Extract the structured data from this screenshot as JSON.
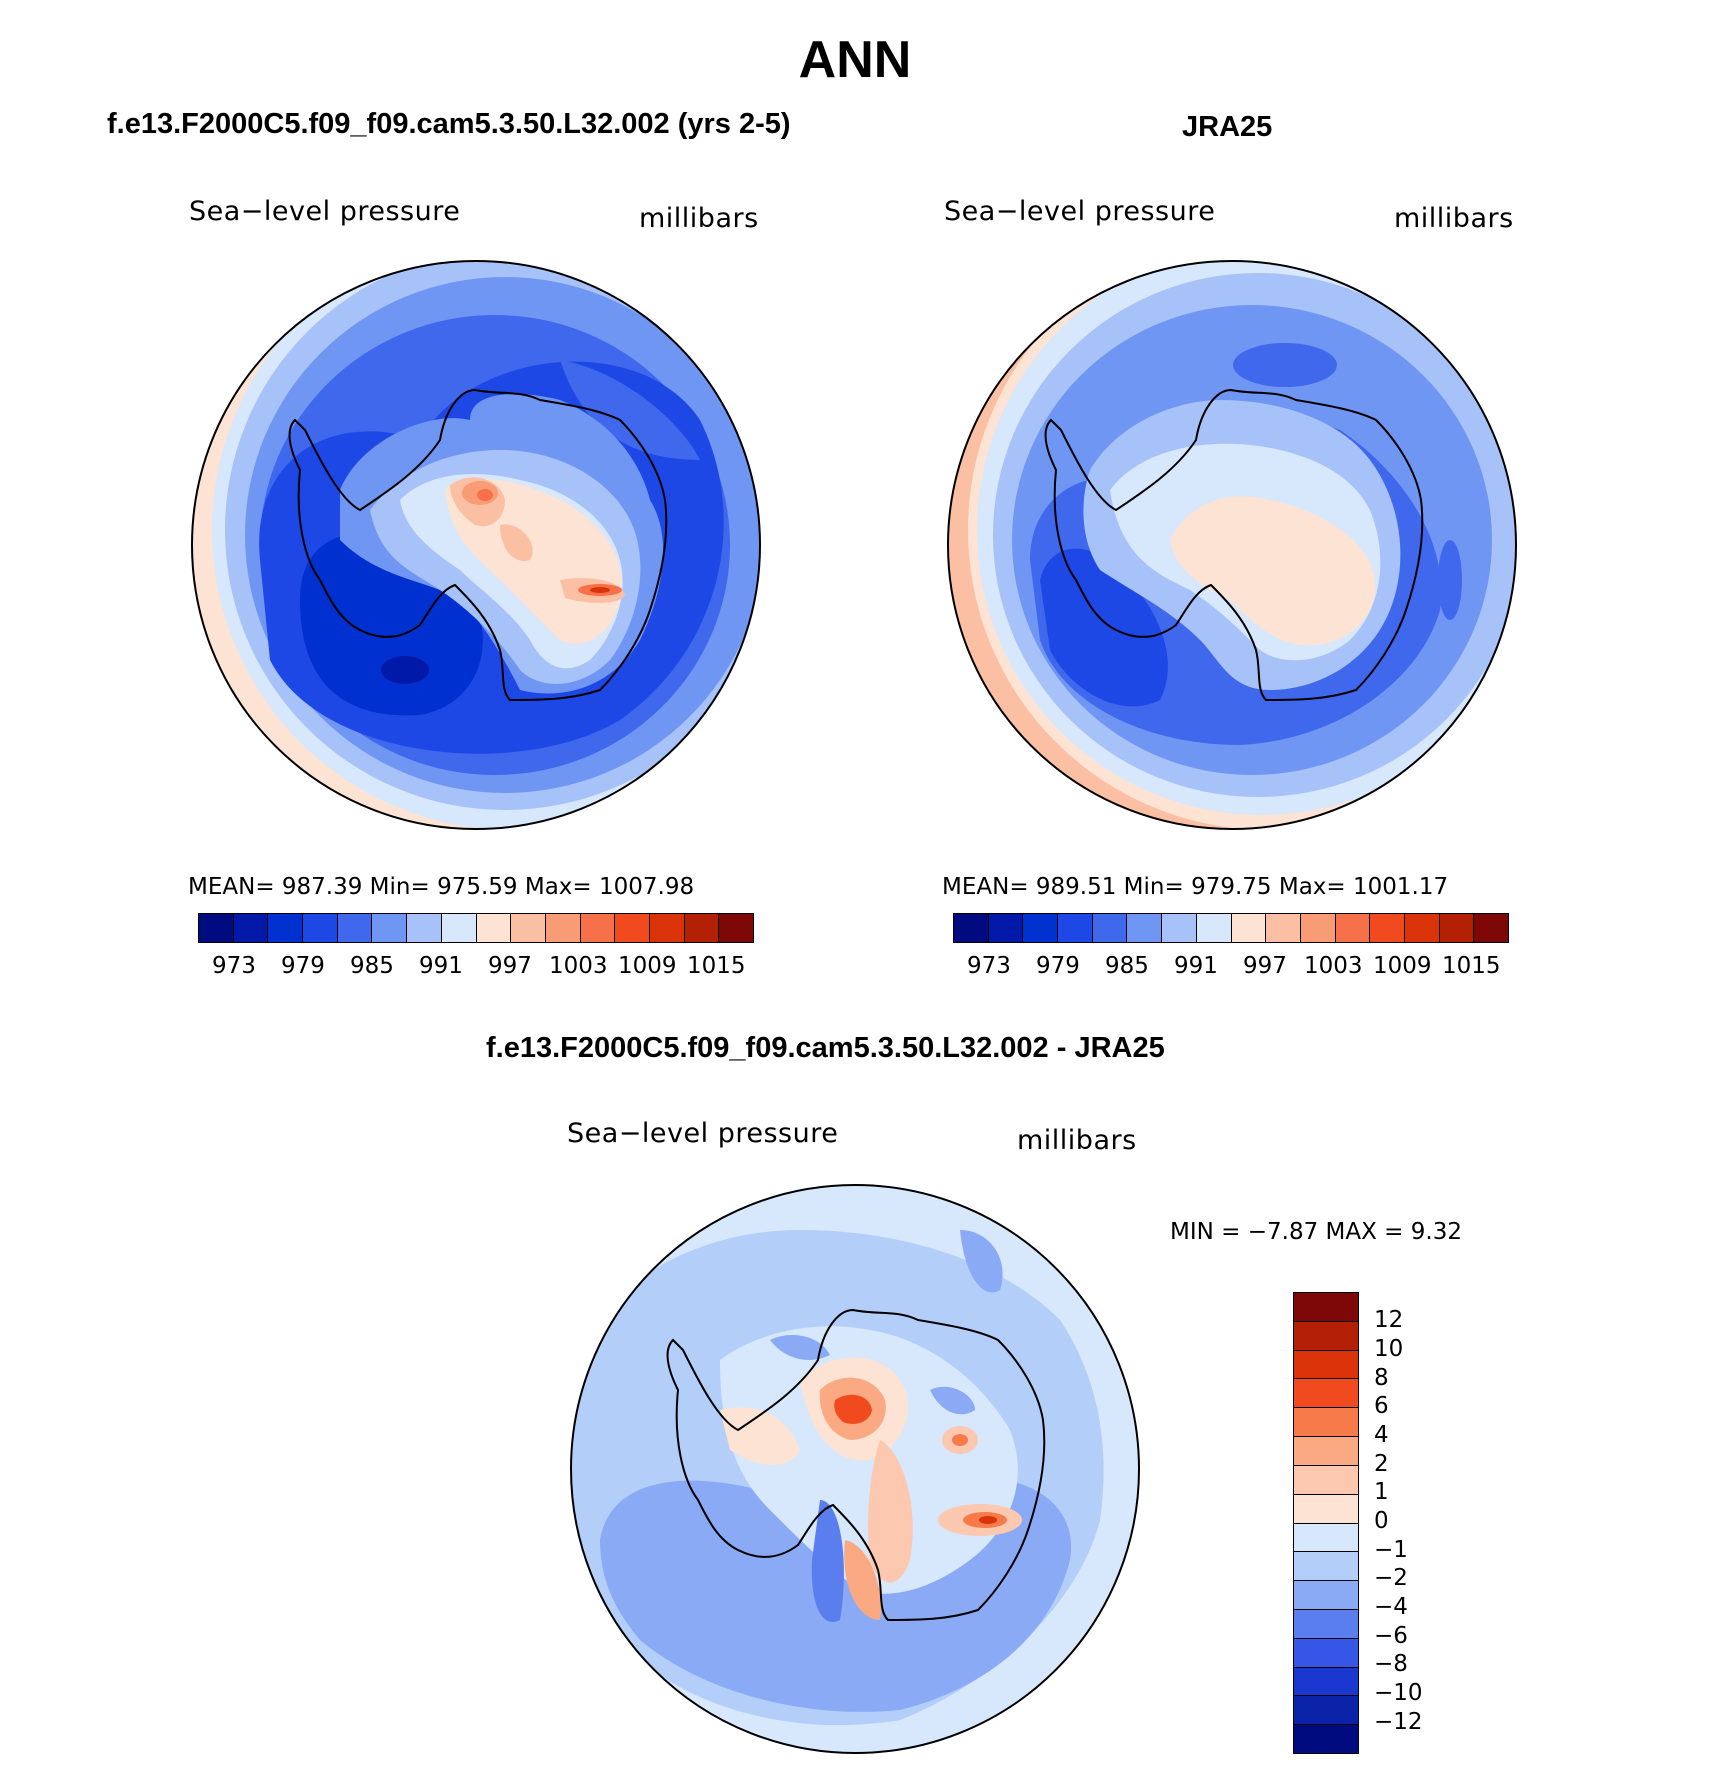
{
  "title": "ANN",
  "panels": [
    {
      "title": "f.e13.F2000C5.f09_f09.cam5.3.50.L32.002 (yrs 2-5)",
      "field": "Sea−level pressure",
      "units": "millibars",
      "stats": "MEAN=  987.39   Min=  975.59   Max=  1007.98",
      "cbar_labels": [
        "973",
        "979",
        "985",
        "991",
        "997",
        "1003",
        "1009",
        "1015"
      ]
    },
    {
      "title": "JRA25",
      "field": "Sea−level pressure",
      "units": "millibars",
      "stats": "MEAN=  989.51   Min=  979.75   Max=  1001.17",
      "cbar_labels": [
        "973",
        "979",
        "985",
        "991",
        "997",
        "1003",
        "1009",
        "1015"
      ]
    }
  ],
  "diff": {
    "title": "f.e13.F2000C5.f09_f09.cam5.3.50.L32.002 - JRA25",
    "field": "Sea−level pressure",
    "units": "millibars",
    "stats": "MIN =   −7.87  MAX =     9.32",
    "cbar_labels": [
      "12",
      "10",
      "8",
      "6",
      "4",
      "2",
      "1",
      "0",
      "−1",
      "−2",
      "−4",
      "−6",
      "−8",
      "−10",
      "−12"
    ]
  },
  "colors": {
    "mean_scale": [
      "#000b80",
      "#0019a8",
      "#0030d0",
      "#1d48e6",
      "#3f68ec",
      "#7096f3",
      "#a6c2f8",
      "#d7e7fc",
      "#fde3d4",
      "#fbc0a3",
      "#f89c76",
      "#f67149",
      "#f14a1f",
      "#da3209",
      "#b32006",
      "#7e0707"
    ],
    "diff_scale": [
      "#7e0707",
      "#b32006",
      "#da3209",
      "#f14a1f",
      "#f67a4a",
      "#fba983",
      "#fcc8b0",
      "#fde3d4",
      "#d7e7fc",
      "#b2cef9",
      "#8aaaf5",
      "#5a7eee",
      "#3556e6",
      "#1a38cf",
      "#0a23a8",
      "#000b80"
    ]
  }
}
